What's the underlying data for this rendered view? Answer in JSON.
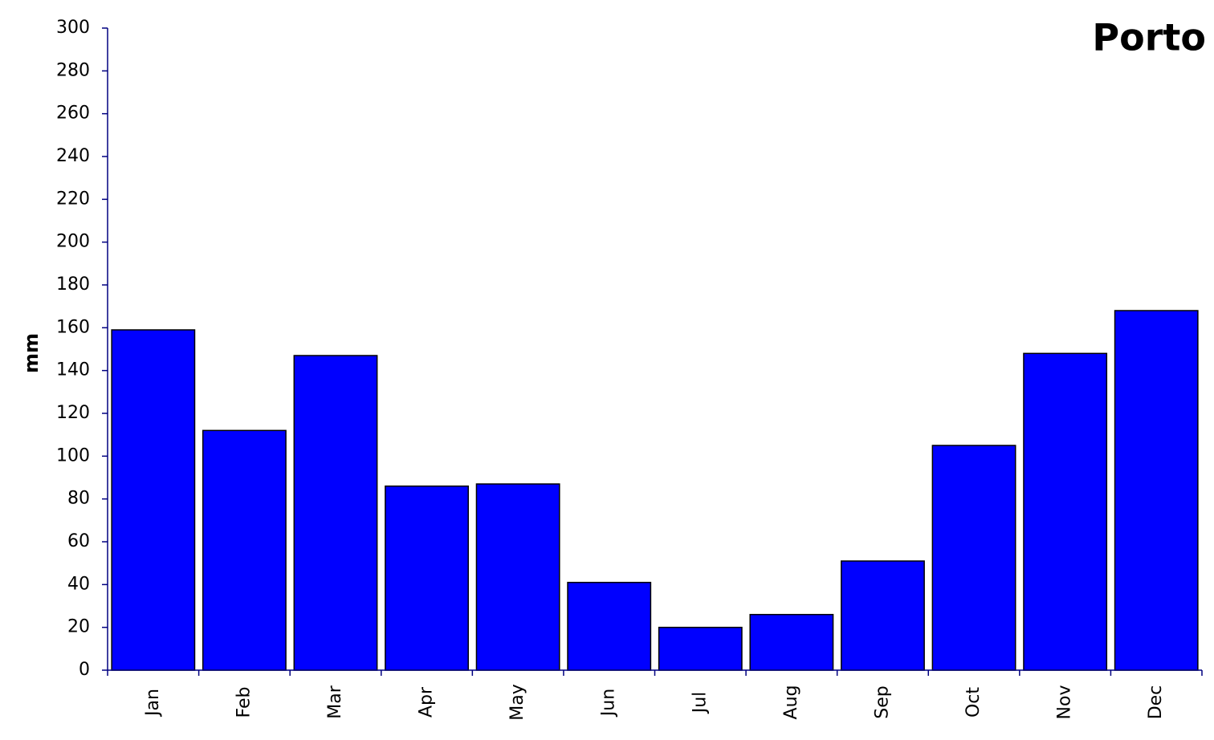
{
  "chart_data": {
    "type": "bar",
    "title": "Porto",
    "y_label": "mm",
    "categories": [
      "Jan",
      "Feb",
      "Mar",
      "Apr",
      "May",
      "Jun",
      "Jul",
      "Aug",
      "Sep",
      "Oct",
      "Nov",
      "Dec"
    ],
    "values": [
      159,
      112,
      147,
      86,
      87,
      41,
      20,
      26,
      51,
      105,
      148,
      168
    ],
    "color": "#0000ff",
    "ylim": [
      0,
      300
    ],
    "yticks": [
      0,
      20,
      40,
      60,
      80,
      100,
      120,
      140,
      160,
      180,
      200,
      220,
      240,
      260,
      280,
      300
    ],
    "grid": false
  }
}
